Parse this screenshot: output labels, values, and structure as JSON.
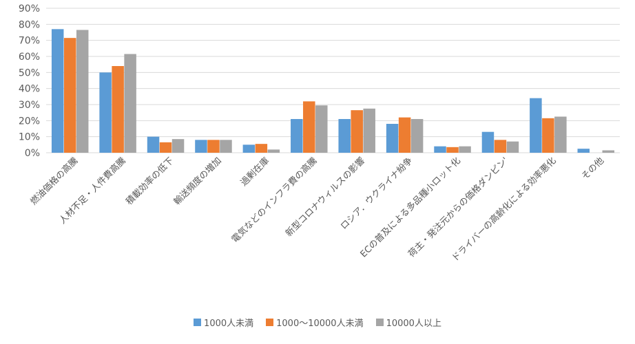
{
  "chart_data": {
    "type": "bar",
    "categories": [
      "燃油価格の高騰",
      "人材不足・人件費高騰",
      "積載効率の低下",
      "輸送頻度の増加",
      "過剰在庫",
      "電気などのインフラ費の高騰",
      "新型コロナウィルスの影響",
      "ロシア．ウクライナ紛争",
      "ECの普及による多品種小ロット化",
      "荷主・発注元からの価格ダンピン'",
      "ドライバーの高齢化による効率悪化",
      "その他"
    ],
    "series": [
      {
        "name": "1000人未満",
        "color": "#5B9BD5",
        "values": [
          77,
          50,
          10,
          8,
          5,
          21,
          21,
          18,
          4,
          13,
          34,
          2.5
        ]
      },
      {
        "name": "1000～10000人未満",
        "color": "#ED7D31",
        "values": [
          71.5,
          54,
          6.5,
          8,
          5.5,
          32,
          26.5,
          22,
          3.5,
          8,
          21.5,
          0
        ]
      },
      {
        "name": "10000人以上",
        "color": "#A5A5A5",
        "values": [
          76.5,
          61.5,
          8.5,
          8,
          2,
          29.5,
          27.5,
          21,
          4,
          7,
          22.5,
          1.5
        ]
      }
    ],
    "yticks": [
      "0%",
      "10%",
      "20%",
      "30%",
      "40%",
      "50%",
      "60%",
      "70%",
      "80%",
      "90%"
    ],
    "ylim": [
      0,
      90
    ],
    "grid": true,
    "legend_position": "bottom"
  }
}
